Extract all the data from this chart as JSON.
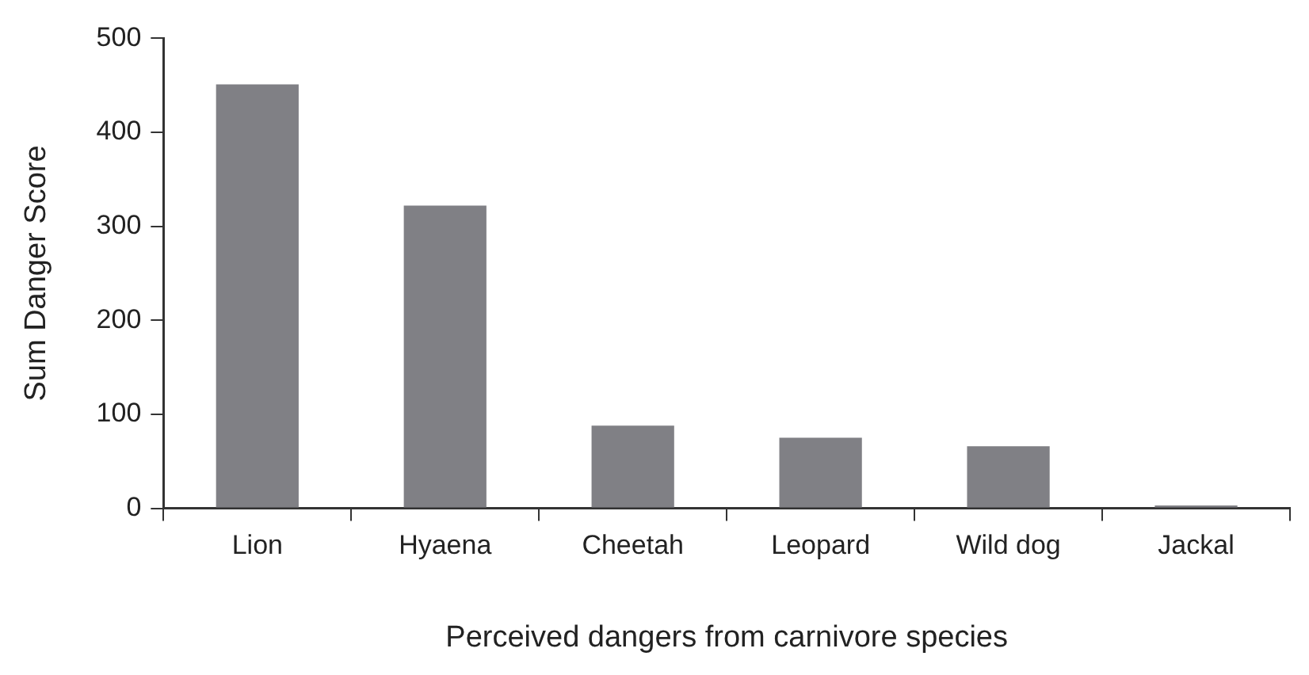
{
  "chart_data": {
    "type": "bar",
    "xlabel": "Perceived dangers from carnivore species",
    "ylabel": "Sum Danger Score",
    "categories": [
      "Lion",
      "Hyaena",
      "Cheetah",
      "Leopard",
      "Wild dog",
      "Jackal"
    ],
    "values": [
      451,
      322,
      88,
      75,
      66,
      3
    ],
    "color": "#808085",
    "ylim": [
      0,
      500
    ],
    "yticks": [
      0,
      100,
      200,
      300,
      400,
      500
    ],
    "grid": false,
    "legend": false
  }
}
